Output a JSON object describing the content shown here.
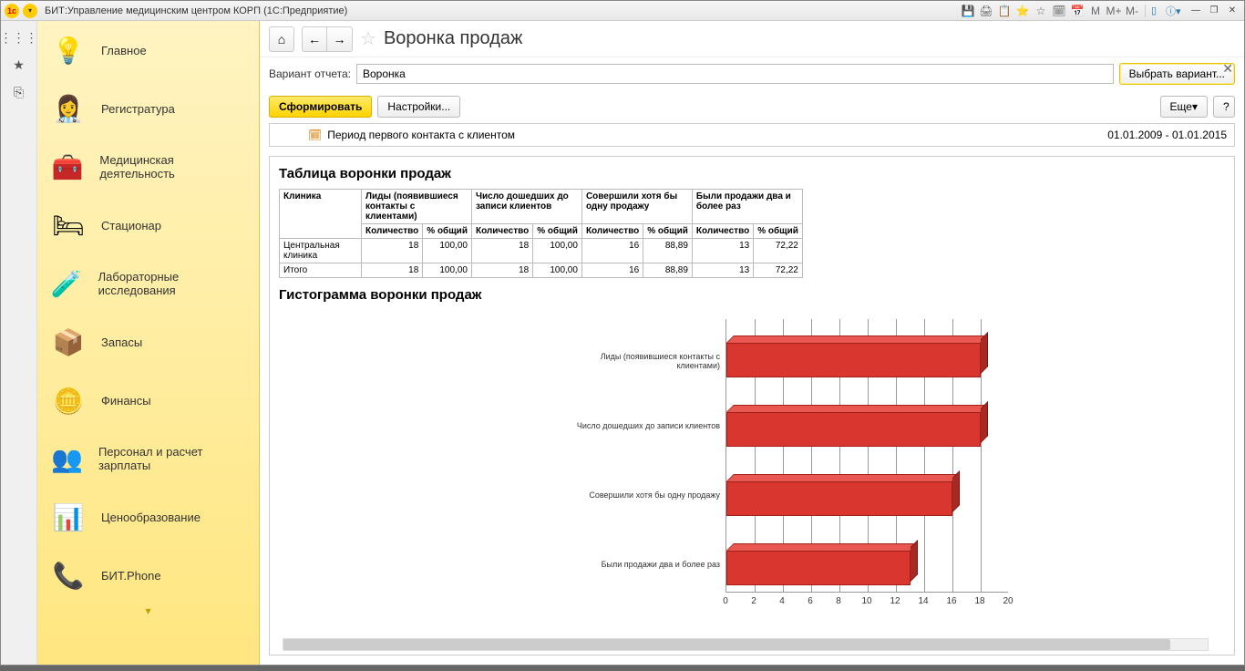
{
  "window_title": "БИТ:Управление медицинским центром КОРП  (1С:Предприятие)",
  "titlebar_icons": [
    "💾",
    "🖨",
    "📋",
    "⭐",
    "☆",
    "🗓",
    "📅",
    "M",
    "M+",
    "M-"
  ],
  "iconbar": [
    "⋮⋮⋮",
    "★",
    "⎘"
  ],
  "sidebar": {
    "items": [
      {
        "icon": "💡",
        "label": "Главное"
      },
      {
        "icon": "👩‍⚕️",
        "label": "Регистратура"
      },
      {
        "icon": "🧰",
        "label": "Медицинская деятельность"
      },
      {
        "icon": "🛏",
        "label": "Стационар"
      },
      {
        "icon": "🧪",
        "label": "Лабораторные исследования"
      },
      {
        "icon": "📦",
        "label": "Запасы"
      },
      {
        "icon": "🪙",
        "label": "Финансы"
      },
      {
        "icon": "👥",
        "label": "Персонал и расчет зарплаты"
      },
      {
        "icon": "📊",
        "label": "Ценообразование"
      },
      {
        "icon": "📞",
        "label": "БИТ.Phone"
      }
    ]
  },
  "toolbar": {
    "home": "⌂",
    "back": "←",
    "forward": "→"
  },
  "page_title": "Воронка продаж",
  "variant_label": "Вариант отчета:",
  "variant_value": "Воронка",
  "select_variant_btn": "Выбрать вариант...",
  "form_btn": "Сформировать",
  "settings_btn": "Настройки...",
  "more_btn": "Еще",
  "help_btn": "?",
  "filter": {
    "label": "Период первого контакта с клиентом",
    "value": "01.01.2009 - 01.01.2015"
  },
  "table_title": "Таблица воронки продаж",
  "chart_title": "Гистограмма воронки продаж",
  "table": {
    "col_clinic": "Клиника",
    "groups": [
      "Лиды (появившиеся контакты с клиентами)",
      "Число дошедших до записи клиентов",
      "Совершили хотя бы одну продажу",
      "Были продажи два и более раз"
    ],
    "sub_qty": "Количество",
    "sub_pct": "% общий",
    "rows": [
      {
        "name": "Центральная клиника",
        "vals": [
          [
            18,
            "100,00"
          ],
          [
            18,
            "100,00"
          ],
          [
            16,
            "88,89"
          ],
          [
            13,
            "72,22"
          ]
        ]
      },
      {
        "name": "Итого",
        "vals": [
          [
            18,
            "100,00"
          ],
          [
            18,
            "100,00"
          ],
          [
            16,
            "88,89"
          ],
          [
            13,
            "72,22"
          ]
        ]
      }
    ]
  },
  "chart": {
    "type": "bar-horizontal",
    "bar_color": "#d9362f",
    "bar_top": "#e85850",
    "bar_side": "#a82822",
    "bar_border": "#a01f1a",
    "background": "#ffffff",
    "grid_color": "#999999",
    "xmin": 0,
    "xmax": 20,
    "xtick_step": 2,
    "xticks": [
      0,
      2,
      4,
      6,
      8,
      10,
      12,
      14,
      16,
      18,
      20
    ],
    "bars": [
      {
        "label": "Лиды (появившиеся контакты с клиентами)",
        "value": 18
      },
      {
        "label": "Число дошедших до записи клиентов",
        "value": 18
      },
      {
        "label": "Совершили хотя бы одну продажу",
        "value": 16
      },
      {
        "label": "Были продажи два и более раз",
        "value": 13
      }
    ]
  }
}
